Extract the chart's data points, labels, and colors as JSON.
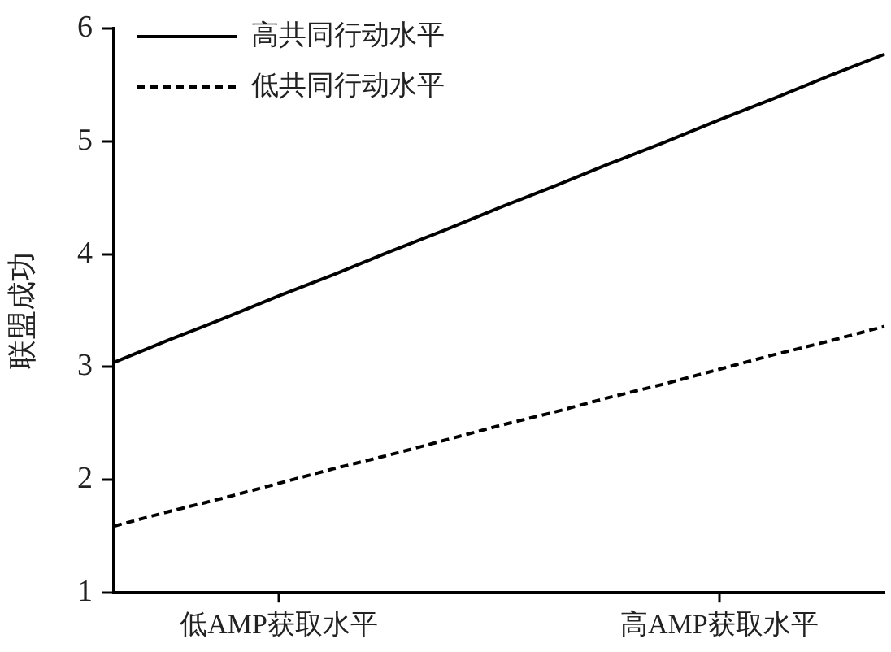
{
  "chart_data": {
    "type": "line",
    "ylabel": "联盟成功",
    "categories": [
      null,
      null,
      null,
      "低AMP获取水平",
      null,
      null,
      null,
      null,
      null,
      null,
      null,
      "高AMP获取水平",
      null,
      null,
      null
    ],
    "ylim": [
      1,
      6
    ],
    "yticks": [
      1,
      2,
      3,
      4,
      5,
      6
    ],
    "series": [
      {
        "name": "高共同行动水平",
        "color": "#000000",
        "line_style": "solid",
        "values": [
          3.04,
          3.24,
          3.43,
          3.63,
          3.82,
          4.02,
          4.21,
          4.41,
          4.6,
          4.8,
          4.99,
          5.19,
          5.38,
          5.58,
          5.77
        ]
      },
      {
        "name": "低共同行动水平",
        "color": "#000000",
        "line_style": "dashed",
        "values": [
          1.59,
          1.72,
          1.84,
          1.97,
          2.1,
          2.22,
          2.35,
          2.48,
          2.6,
          2.73,
          2.85,
          2.98,
          3.11,
          3.23,
          3.36
        ]
      }
    ],
    "grid": false,
    "legend": "top left",
    "marker": "none"
  }
}
